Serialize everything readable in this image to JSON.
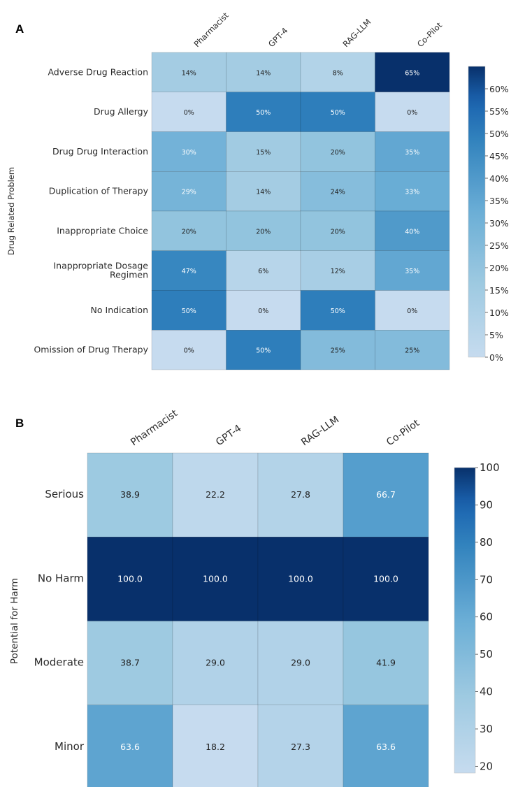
{
  "panel_a_letter": "A",
  "panel_b_letter": "B",
  "chart_data": [
    {
      "type": "heatmap",
      "panel": "A",
      "ylabel": "Drug Related Problem",
      "x": [
        "Pharmacist",
        "GPT-4",
        "RAG-LLM",
        "Co-Pilot"
      ],
      "y": [
        "Adverse Drug Reaction",
        "Drug Allergy",
        "Drug Drug Interaction",
        "Duplication of Therapy",
        "Inappropriate Choice",
        "Inappropriate Dosage\nRegimen",
        "No Indication",
        "Omission of Drug Therapy"
      ],
      "values": [
        [
          14,
          14,
          8,
          65
        ],
        [
          0,
          50,
          50,
          0
        ],
        [
          30,
          15,
          20,
          35
        ],
        [
          29,
          14,
          24,
          33
        ],
        [
          20,
          20,
          20,
          40
        ],
        [
          47,
          6,
          12,
          35
        ],
        [
          50,
          0,
          50,
          0
        ],
        [
          0,
          50,
          25,
          25
        ]
      ],
      "cell_labels": [
        [
          "14%",
          "14%",
          "8%",
          "65%"
        ],
        [
          "0%",
          "50%",
          "50%",
          "0%"
        ],
        [
          "30%",
          "15%",
          "20%",
          "35%"
        ],
        [
          "29%",
          "14%",
          "24%",
          "33%"
        ],
        [
          "20%",
          "20%",
          "20%",
          "40%"
        ],
        [
          "47%",
          "6%",
          "12%",
          "35%"
        ],
        [
          "50%",
          "0%",
          "50%",
          "0%"
        ],
        [
          "0%",
          "50%",
          "25%",
          "25%"
        ]
      ],
      "color_range": [
        0,
        65
      ],
      "colorbar_ticks": [
        0,
        5,
        10,
        15,
        20,
        25,
        30,
        35,
        40,
        45,
        50,
        55,
        60
      ],
      "colorbar_tick_labels": [
        "0%",
        "5%",
        "10%",
        "15%",
        "20%",
        "25%",
        "30%",
        "35%",
        "40%",
        "45%",
        "50%",
        "55%",
        "60%"
      ],
      "colorscale": "Blues"
    },
    {
      "type": "heatmap",
      "panel": "B",
      "ylabel": "Potential for Harm",
      "x": [
        "Pharmacist",
        "GPT-4",
        "RAG-LLM",
        "Co-Pilot"
      ],
      "y": [
        "Serious",
        "No Harm",
        "Moderate",
        "Minor"
      ],
      "values": [
        [
          38.9,
          22.2,
          27.8,
          66.7
        ],
        [
          100.0,
          100.0,
          100.0,
          100.0
        ],
        [
          38.7,
          29.0,
          29.0,
          41.9
        ],
        [
          63.6,
          18.2,
          27.3,
          63.6
        ]
      ],
      "cell_labels": [
        [
          "38.9",
          "22.2",
          "27.8",
          "66.7"
        ],
        [
          "100.0",
          "100.0",
          "100.0",
          "100.0"
        ],
        [
          "38.7",
          "29.0",
          "29.0",
          "41.9"
        ],
        [
          "63.6",
          "18.2",
          "27.3",
          "63.6"
        ]
      ],
      "color_range": [
        18.2,
        100
      ],
      "colorbar_ticks": [
        20,
        30,
        40,
        50,
        60,
        70,
        80,
        90,
        100
      ],
      "colorbar_tick_labels": [
        "20",
        "30",
        "40",
        "50",
        "60",
        "70",
        "80",
        "90",
        "100"
      ],
      "colorscale": "Blues"
    }
  ]
}
